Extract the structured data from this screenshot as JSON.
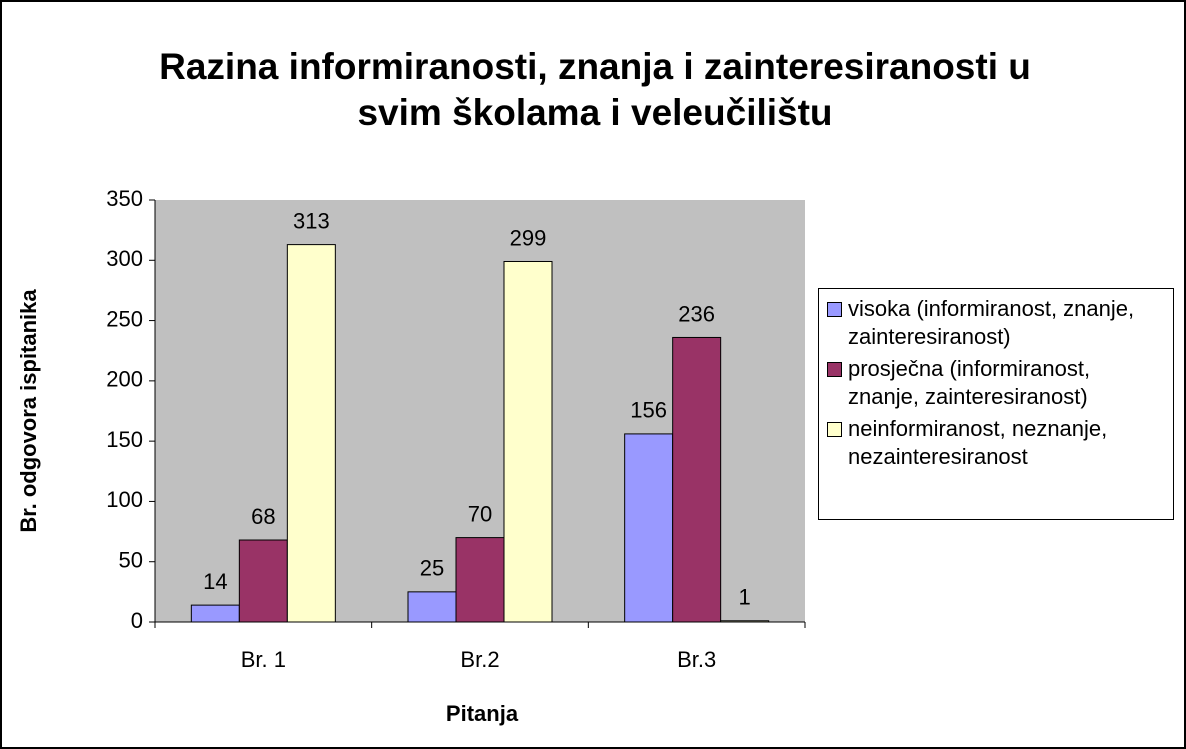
{
  "chart_data": {
    "type": "bar",
    "title": "Razina informiranosti, znanja i zainteresiranosti u svim školama i veleučilištu",
    "x_label": "Pitanja",
    "y_label": "Br. odgovora ispitanika",
    "categories": [
      "Br. 1",
      "Br.2",
      "Br.3"
    ],
    "series": [
      {
        "name": "visoka (informiranost, znanje, zainteresiranost)",
        "color": "#9999ff",
        "values": [
          14,
          25,
          156
        ]
      },
      {
        "name": "prosječna (informiranost, znanje, zainteresiranost)",
        "color": "#993366",
        "values": [
          68,
          70,
          236
        ]
      },
      {
        "name": "neinformiranost, neznanje, nezainteresiranost",
        "color": "#ffffcc",
        "values": [
          313,
          299,
          1
        ]
      }
    ],
    "ylim": [
      0,
      350
    ],
    "yticks": [
      0,
      50,
      100,
      150,
      200,
      250,
      300,
      350
    ],
    "legend": "right"
  }
}
